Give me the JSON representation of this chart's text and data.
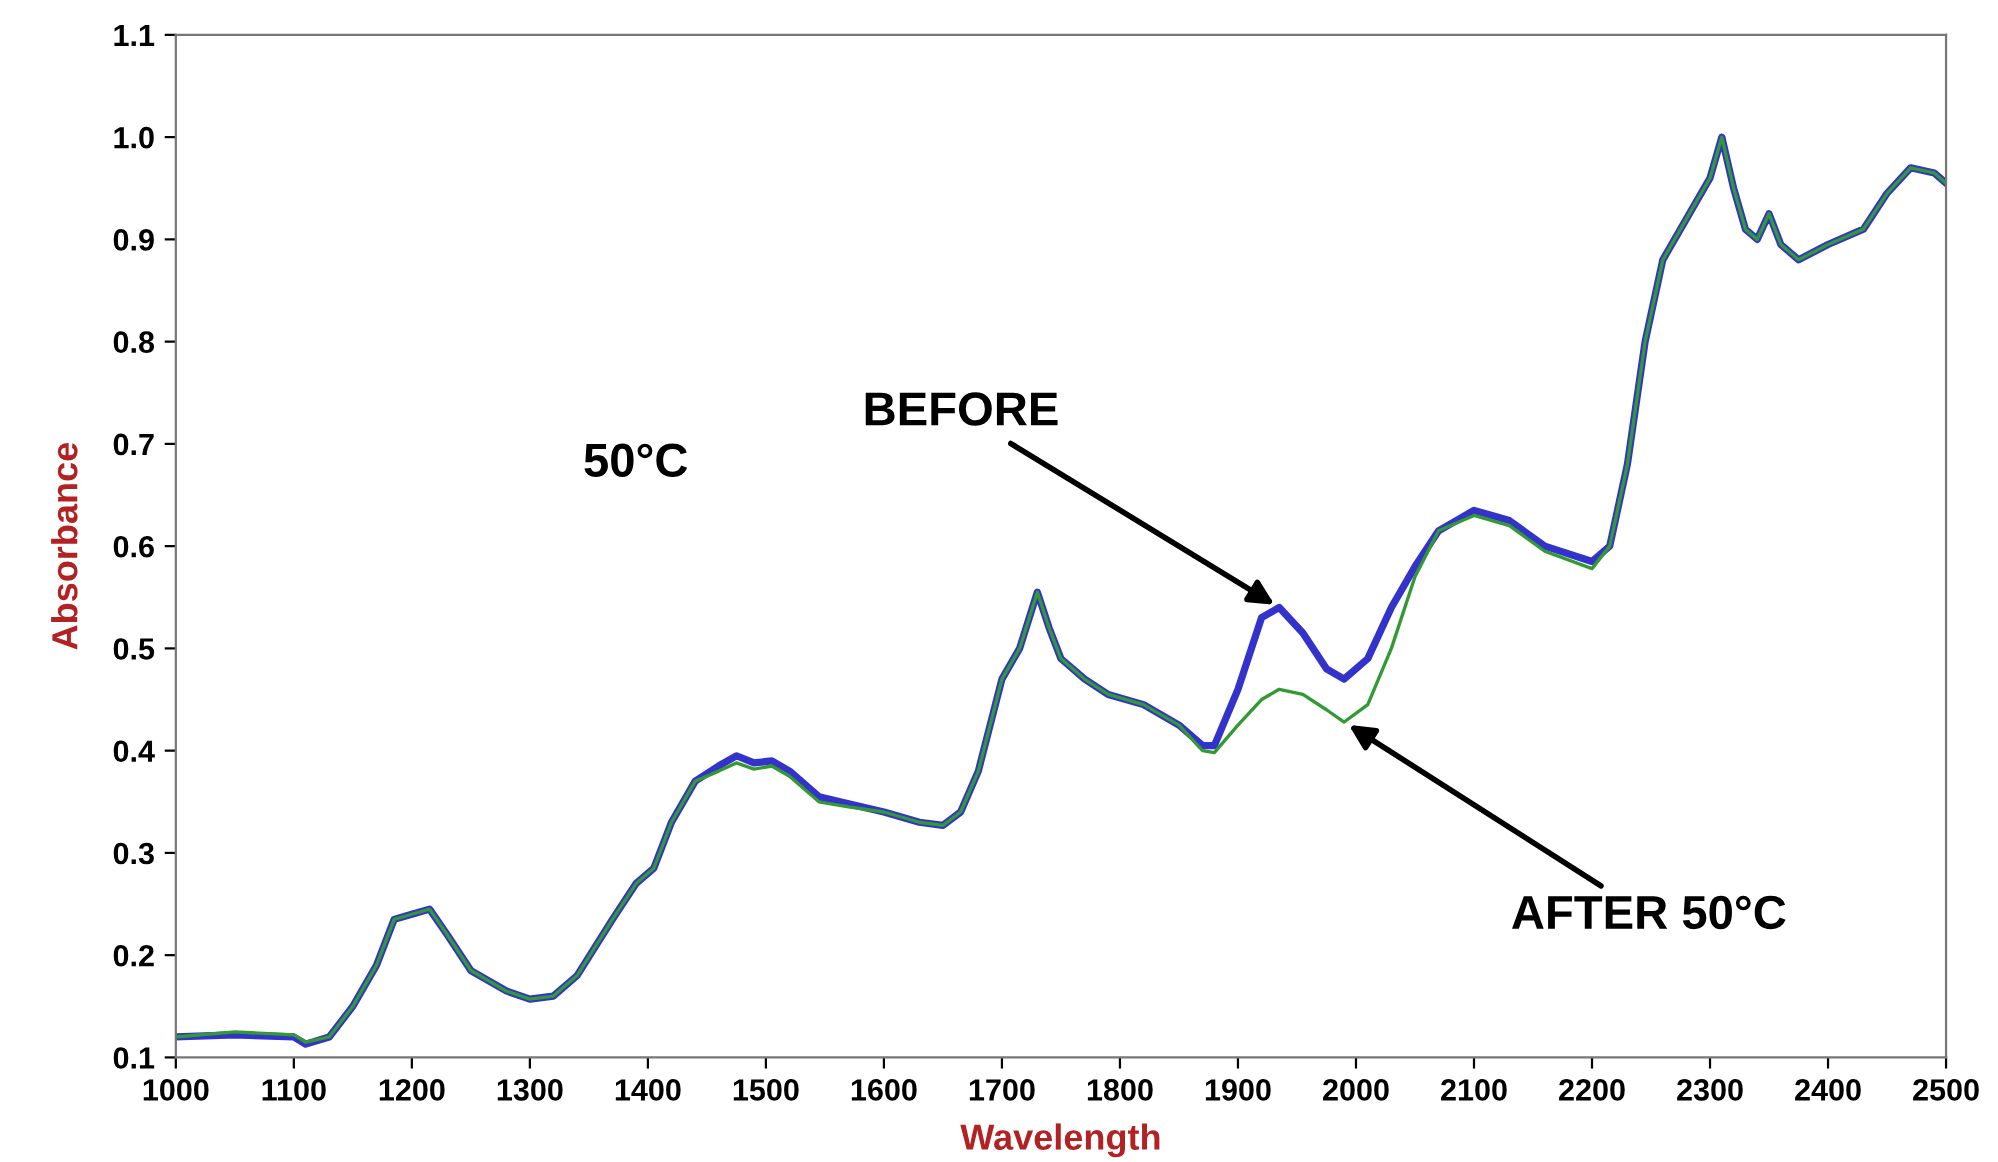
{
  "chart_data": {
    "type": "line",
    "xlabel": "Wavelength",
    "ylabel": "Absorbance",
    "x": [
      1000,
      1050,
      1100,
      1110,
      1130,
      1150,
      1170,
      1185,
      1200,
      1215,
      1230,
      1250,
      1280,
      1300,
      1320,
      1340,
      1370,
      1390,
      1405,
      1420,
      1440,
      1460,
      1475,
      1490,
      1505,
      1520,
      1545,
      1570,
      1600,
      1630,
      1650,
      1665,
      1680,
      1700,
      1715,
      1730,
      1740,
      1750,
      1770,
      1790,
      1820,
      1850,
      1870,
      1880,
      1900,
      1920,
      1935,
      1955,
      1975,
      1990,
      2010,
      2030,
      2050,
      2070,
      2100,
      2130,
      2160,
      2200,
      2215,
      2230,
      2245,
      2260,
      2280,
      2300,
      2310,
      2320,
      2330,
      2340,
      2350,
      2360,
      2375,
      2400,
      2430,
      2450,
      2470,
      2490,
      2500
    ],
    "series": [
      {
        "color": "#339933",
        "values": [
          0.12,
          0.125,
          0.122,
          0.115,
          0.12,
          0.15,
          0.19,
          0.235,
          0.24,
          0.245,
          0.22,
          0.185,
          0.165,
          0.157,
          0.16,
          0.18,
          0.235,
          0.27,
          0.285,
          0.33,
          0.37,
          0.38,
          0.388,
          0.382,
          0.385,
          0.375,
          0.35,
          0.345,
          0.34,
          0.33,
          0.327,
          0.34,
          0.38,
          0.47,
          0.5,
          0.555,
          0.52,
          0.49,
          0.47,
          0.455,
          0.445,
          0.425,
          0.4,
          0.398,
          0.425,
          0.45,
          0.46,
          0.455,
          0.44,
          0.428,
          0.445,
          0.5,
          0.57,
          0.615,
          0.63,
          0.62,
          0.595,
          0.578,
          0.6,
          0.68,
          0.8,
          0.88,
          0.92,
          0.96,
          1.0,
          0.95,
          0.91,
          0.9,
          0.925,
          0.895,
          0.88,
          0.895,
          0.91,
          0.945,
          0.97,
          0.965,
          0.955
        ]
      },
      {
        "color": "#3333cc",
        "values": [
          0.12,
          0.122,
          0.12,
          0.113,
          0.12,
          0.15,
          0.19,
          0.235,
          0.24,
          0.245,
          0.22,
          0.185,
          0.165,
          0.157,
          0.16,
          0.18,
          0.235,
          0.27,
          0.285,
          0.33,
          0.37,
          0.385,
          0.395,
          0.388,
          0.39,
          0.38,
          0.355,
          0.348,
          0.34,
          0.33,
          0.327,
          0.34,
          0.38,
          0.47,
          0.5,
          0.555,
          0.52,
          0.49,
          0.47,
          0.455,
          0.445,
          0.425,
          0.405,
          0.405,
          0.46,
          0.53,
          0.54,
          0.515,
          0.48,
          0.47,
          0.49,
          0.54,
          0.58,
          0.615,
          0.635,
          0.625,
          0.6,
          0.585,
          0.6,
          0.68,
          0.8,
          0.88,
          0.92,
          0.96,
          1.0,
          0.95,
          0.91,
          0.9,
          0.925,
          0.895,
          0.88,
          0.895,
          0.91,
          0.945,
          0.97,
          0.965,
          0.955
        ]
      }
    ],
    "annotations": [
      {
        "text": "BEFORE",
        "x": 1935,
        "y": 0.54
      },
      "50°C",
      {
        "text": "AFTER 50°C",
        "x": 1990,
        "y": 0.428
      }
    ],
    "xlim": [
      1000,
      2500
    ],
    "xticks": [
      1000,
      1100,
      1200,
      1300,
      1400,
      1500,
      1600,
      1700,
      1800,
      1900,
      2000,
      2100,
      2200,
      2300,
      2400,
      2500
    ],
    "ylim": [
      0.1,
      1.1
    ],
    "yticks": [
      0.1,
      0.2,
      0.3,
      0.4,
      0.5,
      0.6,
      0.7,
      0.8,
      0.9,
      {
        "value": 1.0,
        "label": "1.0"
      },
      1.1
    ],
    "grid": false,
    "legend": false,
    "marker": "none",
    "line_style": "solid"
  }
}
